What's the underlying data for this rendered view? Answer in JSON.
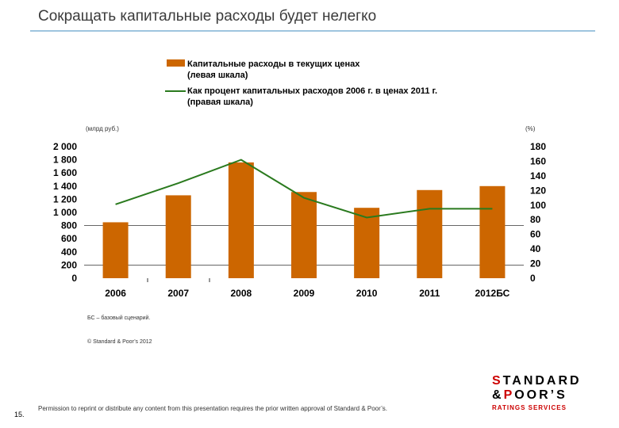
{
  "title": "Сокращать капитальные расходы будет нелегко",
  "legend": {
    "bar_line1": "Капитальные расходы в текущих ценах",
    "bar_line2": "(левая шкала)",
    "line_line1": "Как процент капитальных расходов 2006 г. в ценах 2011 г.",
    "line_line2": "(правая шкала)"
  },
  "units": {
    "left": "(млрд руб.)",
    "right": "(%)"
  },
  "notes": {
    "scenario": "БС – базовый сценарий.",
    "source": "© Standard & Poor’s 2012"
  },
  "footer": {
    "page": "15.",
    "permission": "Permission to reprint or distribute any content from this presentation requires the prior written approval of Standard & Poor’s."
  },
  "logo": {
    "line1a": "S",
    "line1b": "TANDARD",
    "line2a": "&",
    "line2b": "P",
    "line2c": "OOR’S",
    "sub": "RATINGS SERVICES"
  },
  "colors": {
    "bar": "#cc6600",
    "line": "#2a7a1e"
  },
  "chart_data": {
    "type": "bar",
    "categories": [
      "2006",
      "2007",
      "2008",
      "2009",
      "2010",
      "2011",
      "2012БС"
    ],
    "series": [
      {
        "values": [
          850,
          1260,
          1760,
          1310,
          1070,
          1340,
          1400
        ],
        "axis": "left",
        "type": "bar"
      },
      {
        "values": [
          101,
          130,
          162,
          110,
          83,
          95,
          95
        ],
        "axis": "right",
        "type": "line"
      }
    ],
    "y_left": {
      "ticks": [
        "2 000",
        "1 800",
        "1 600",
        "1 400",
        "1 200",
        "1 000",
        "800",
        "600",
        "400",
        "200",
        "0"
      ],
      "ylim": [
        0,
        2000
      ]
    },
    "y_right": {
      "ticks": [
        "180",
        "160",
        "140",
        "120",
        "100",
        "80",
        "60",
        "40",
        "20",
        "0"
      ],
      "ylim": [
        0,
        180
      ]
    },
    "grid": false
  }
}
